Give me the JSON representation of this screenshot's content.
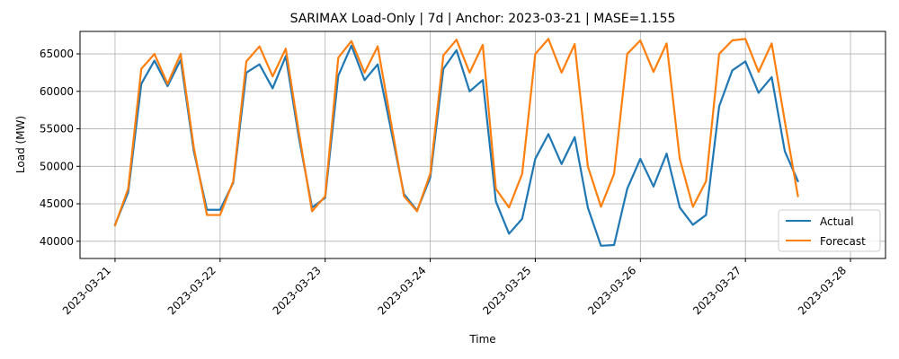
{
  "chart_data": {
    "type": "line",
    "title": "SARIMAX Load-Only | 7d | Anchor: 2023-03-21 | MASE=1.155",
    "xlabel": "Time",
    "ylabel": "Load (MW)",
    "x_start": "2023-03-21 00:00",
    "x_step_hours": 3,
    "xlim": [
      "2023-03-20 16:00",
      "2023-03-28 08:00"
    ],
    "ylim": [
      37700,
      68000
    ],
    "x_ticks": [
      "2023-03-21",
      "2023-03-22",
      "2023-03-23",
      "2023-03-24",
      "2023-03-25",
      "2023-03-26",
      "2023-03-27",
      "2023-03-28"
    ],
    "y_ticks": [
      40000,
      45000,
      50000,
      55000,
      60000,
      65000
    ],
    "y_tick_labels": [
      "40000",
      "45000",
      "50000",
      "55000",
      "60000",
      "65000"
    ],
    "grid": true,
    "legend_position": "lower-right",
    "series": [
      {
        "name": "Actual",
        "color": "#1f77b4",
        "values": [
          42200,
          46500,
          61000,
          64100,
          60700,
          64200,
          52000,
          44200,
          44200,
          47800,
          62500,
          63600,
          60400,
          64700,
          53800,
          44500,
          45800,
          62100,
          66100,
          61500,
          63600,
          55000,
          46300,
          44100,
          48500,
          63000,
          65500,
          60000,
          61500,
          45300,
          41000,
          43000,
          51000,
          54300,
          50300,
          53900,
          44500,
          39400,
          39500,
          47000,
          51000,
          47300,
          51700,
          44500,
          42200,
          43500,
          58000,
          62800,
          64000,
          59800,
          61900,
          52000,
          48000
        ]
      },
      {
        "name": "Forecast",
        "color": "#ff7f0e",
        "values": [
          42100,
          47000,
          63000,
          65000,
          61000,
          65000,
          52500,
          43500,
          43500,
          48000,
          64000,
          66000,
          62000,
          65700,
          54500,
          44000,
          46000,
          64500,
          66700,
          62500,
          66000,
          56000,
          46000,
          44000,
          49000,
          64800,
          66900,
          62500,
          66200,
          47000,
          44500,
          49000,
          65000,
          67000,
          62500,
          66300,
          50000,
          44600,
          49000,
          65000,
          66800,
          62600,
          66400,
          51000,
          44600,
          48000,
          65000,
          66800,
          67000,
          62600,
          66400,
          56000,
          46000
        ]
      }
    ]
  }
}
